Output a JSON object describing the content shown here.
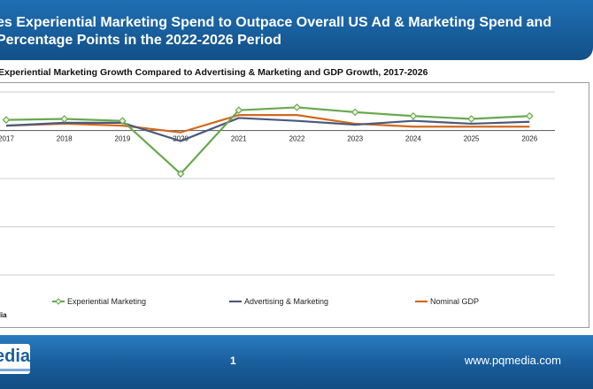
{
  "header": {
    "title_line1": "es Experiential Marketing Spend to Outpace Overall US Ad & Marketing Spend and",
    "title_line2": " Percentage Points in the 2022-2026 Period"
  },
  "source_text": "dia",
  "footer": {
    "logo_text": "edia",
    "page_number": "1",
    "url": "www.pqmedia.com"
  },
  "chart_data": {
    "type": "line",
    "title": "Experiential Marketing Growth Compared to Advertising & Marketing and GDP Growth, 2017-2026",
    "xlabel": "",
    "ylabel": "",
    "ylim": [
      -0.15,
      0.04
    ],
    "categories": [
      "2017",
      "2018",
      "2019",
      "2020",
      "2021",
      "2022",
      "2023",
      "2024",
      "2025",
      "2026"
    ],
    "series": [
      {
        "name": "Experiential Marketing",
        "color": "#6aa84f",
        "marker": "diamond",
        "values": [
          0.011,
          0.012,
          0.01,
          -0.045,
          0.021,
          0.024,
          0.019,
          0.015,
          0.012,
          0.015
        ]
      },
      {
        "name": "Advertising & Marketing",
        "color": "#4a5a7c",
        "marker": "none",
        "values": [
          0.005,
          0.008,
          0.008,
          -0.011,
          0.013,
          0.01,
          0.006,
          0.01,
          0.007,
          0.009
        ]
      },
      {
        "name": "Nominal GDP",
        "color": "#d2691e",
        "marker": "none",
        "values": [
          0.005,
          0.007,
          0.005,
          -0.002,
          0.016,
          0.016,
          0.007,
          0.004,
          0.004,
          0.004
        ]
      }
    ],
    "legend_position": "bottom",
    "grid": true
  }
}
